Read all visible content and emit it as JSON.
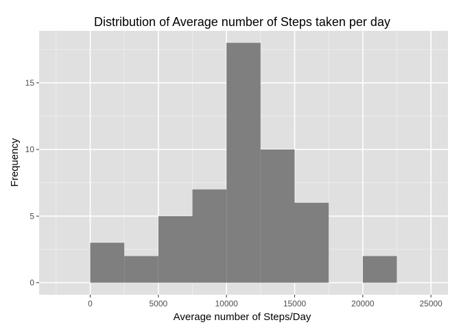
{
  "chart_data": {
    "type": "bar",
    "subtype": "histogram",
    "title": "Distribution of Average number of Steps taken per day",
    "xlabel": "Average number of Steps/Day",
    "ylabel": "Frequency",
    "bin_width": 2500,
    "bins": [
      {
        "x_start": 0,
        "x_end": 2500,
        "count": 3
      },
      {
        "x_start": 2500,
        "x_end": 5000,
        "count": 2
      },
      {
        "x_start": 5000,
        "x_end": 7500,
        "count": 5
      },
      {
        "x_start": 7500,
        "x_end": 10000,
        "count": 7
      },
      {
        "x_start": 10000,
        "x_end": 12500,
        "count": 18
      },
      {
        "x_start": 12500,
        "x_end": 15000,
        "count": 10
      },
      {
        "x_start": 15000,
        "x_end": 17500,
        "count": 6
      },
      {
        "x_start": 17500,
        "x_end": 20000,
        "count": 0
      },
      {
        "x_start": 20000,
        "x_end": 22500,
        "count": 2
      }
    ],
    "xlim": [
      -3750,
      26250
    ],
    "ylim": [
      -0.9,
      18.9
    ],
    "x_ticks": [
      0,
      5000,
      10000,
      15000,
      20000,
      25000
    ],
    "x_tick_labels": [
      "0",
      "5000",
      "10000",
      "15000",
      "20000",
      "25000"
    ],
    "y_ticks": [
      0,
      5,
      10,
      15
    ],
    "y_tick_labels": [
      "0",
      "5",
      "10",
      "15"
    ],
    "grid": true,
    "colors": {
      "bar_fill": "#7f7f7f",
      "panel_background": "#e0e0e0",
      "grid_major": "#ffffff",
      "grid_minor": "#efefef",
      "tick_label": "#4d4d4d"
    }
  }
}
